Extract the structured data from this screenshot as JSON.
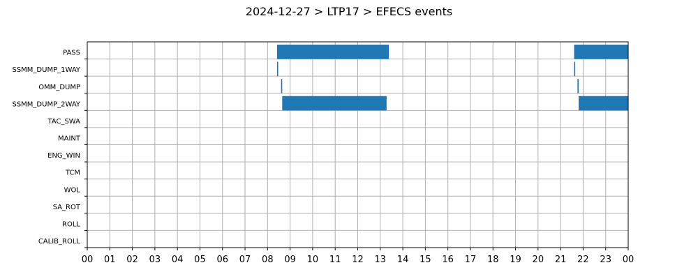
{
  "chart_data": {
    "type": "bar",
    "title": "2024-12-27 > LTP17 > EFECS events",
    "xlabel": "",
    "ylabel": "",
    "x_range_hours": [
      0,
      24
    ],
    "x_ticks": [
      "00",
      "01",
      "02",
      "03",
      "04",
      "05",
      "06",
      "07",
      "08",
      "09",
      "10",
      "11",
      "12",
      "13",
      "14",
      "15",
      "16",
      "17",
      "18",
      "19",
      "20",
      "21",
      "22",
      "23",
      "00"
    ],
    "categories": [
      "PASS",
      "SSMM_DUMP_1WAY",
      "OMM_DUMP",
      "SSMM_DUMP_2WAY",
      "TAC_SWA",
      "MAINT",
      "ENG_WIN",
      "TCM",
      "WOL",
      "SA_ROT",
      "ROLL",
      "CALIB_ROLL"
    ],
    "grid": true,
    "bar_color": "#1f77b4",
    "series": [
      {
        "category": "PASS",
        "intervals": [
          [
            8.42,
            13.38
          ],
          [
            21.6,
            24.0
          ]
        ]
      },
      {
        "category": "SSMM_DUMP_1WAY",
        "intervals": [
          [
            8.42,
            8.47
          ],
          [
            21.6,
            21.65
          ]
        ]
      },
      {
        "category": "OMM_DUMP",
        "intervals": [
          [
            8.6,
            8.65
          ],
          [
            21.75,
            21.8
          ]
        ]
      },
      {
        "category": "SSMM_DUMP_2WAY",
        "intervals": [
          [
            8.65,
            13.28
          ],
          [
            21.8,
            24.0
          ]
        ]
      },
      {
        "category": "TAC_SWA",
        "intervals": []
      },
      {
        "category": "MAINT",
        "intervals": []
      },
      {
        "category": "ENG_WIN",
        "intervals": []
      },
      {
        "category": "TCM",
        "intervals": []
      },
      {
        "category": "WOL",
        "intervals": []
      },
      {
        "category": "SA_ROT",
        "intervals": []
      },
      {
        "category": "ROLL",
        "intervals": []
      },
      {
        "category": "CALIB_ROLL",
        "intervals": []
      }
    ]
  }
}
